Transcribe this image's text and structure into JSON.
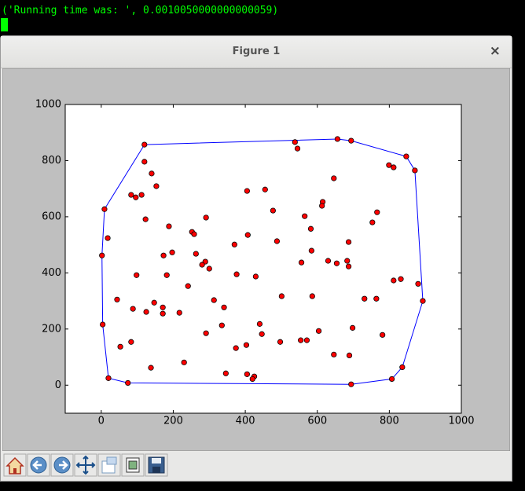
{
  "terminal": {
    "output": "('Running time was: ', 0.0010050000000000059)"
  },
  "window": {
    "title": "Figure 1",
    "close": "×"
  },
  "chart_data": {
    "type": "scatter",
    "xlim": [
      -100,
      1000
    ],
    "ylim": [
      -100,
      1000
    ],
    "xticks": [
      0,
      200,
      400,
      600,
      800,
      1000
    ],
    "yticks": [
      0,
      200,
      400,
      600,
      800,
      1000
    ],
    "series": [
      {
        "type": "scatter",
        "color": "#ff0000",
        "x": [
          120,
          656,
          694,
          538,
          545,
          847,
          799,
          812,
          871,
          120,
          140,
          153,
          646,
          455,
          405,
          83,
          112,
          96,
          9,
          615,
          613,
          477,
          766,
          291,
          123,
          565,
          753,
          582,
          18,
          188,
          252,
          258,
          407,
          488,
          370,
          687,
          197,
          173,
          263,
          2,
          584,
          556,
          630,
          654,
          289,
          280,
          687,
          683,
          300,
          98,
          182,
          376,
          429,
          812,
          832,
          880,
          241,
          586,
          501,
          731,
          764,
          44,
          313,
          88,
          147,
          171,
          171,
          125,
          341,
          217,
          4,
          698,
          335,
          440,
          781,
          291,
          604,
          83,
          497,
          554,
          571,
          53,
          374,
          403,
          646,
          689,
          230,
          138,
          20,
          405,
          425,
          346,
          74,
          694,
          807,
          836,
          893,
          420,
          446
        ],
        "values": [
          857,
          877,
          871,
          866,
          843,
          815,
          784,
          776,
          765,
          796,
          754,
          709,
          737,
          697,
          692,
          678,
          678,
          669,
          627,
          653,
          639,
          622,
          616,
          597,
          591,
          602,
          580,
          557,
          524,
          566,
          546,
          538,
          535,
          513,
          501,
          510,
          473,
          462,
          468,
          462,
          479,
          437,
          443,
          434,
          440,
          429,
          423,
          443,
          415,
          392,
          392,
          395,
          387,
          373,
          378,
          361,
          353,
          317,
          317,
          308,
          308,
          305,
          303,
          272,
          294,
          277,
          255,
          261,
          277,
          258,
          216,
          204,
          213,
          218,
          179,
          185,
          193,
          154,
          154,
          160,
          160,
          137,
          132,
          143,
          109,
          106,
          81,
          62,
          25,
          39,
          31,
          42,
          8,
          3,
          22,
          64,
          300,
          22,
          182
        ]
      },
      {
        "type": "line",
        "color": "#0000ff",
        "x": [
          120,
          656,
          694,
          847,
          871,
          893,
          836,
          807,
          694,
          74,
          20,
          4,
          2,
          9,
          120
        ],
        "values": [
          857,
          877,
          871,
          815,
          765,
          300,
          64,
          22,
          3,
          8,
          25,
          216,
          462,
          627,
          857
        ]
      }
    ]
  }
}
